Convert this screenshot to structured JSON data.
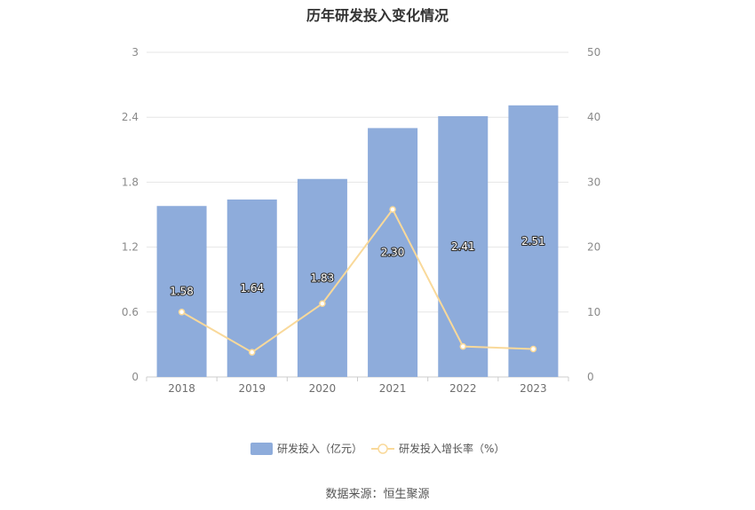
{
  "chart_data": {
    "type": "bar",
    "title": "历年研发投入变化情况",
    "categories": [
      "2018",
      "2019",
      "2020",
      "2021",
      "2022",
      "2023"
    ],
    "series": [
      {
        "name": "研发投入（亿元）",
        "type": "bar",
        "axis": "left",
        "values": [
          1.58,
          1.64,
          1.83,
          2.3,
          2.41,
          2.51
        ],
        "color": "#8eacdb"
      },
      {
        "name": "研发投入增长率（%）",
        "type": "line",
        "axis": "right",
        "values": [
          10.0,
          3.8,
          11.3,
          25.8,
          4.7,
          4.3
        ],
        "color": "#f9d99a"
      }
    ],
    "data_labels": [
      "1.58",
      "1.64",
      "1.83",
      "2.30",
      "2.41",
      "2.51"
    ],
    "y_left": {
      "min": 0,
      "max": 3,
      "ticks": [
        "0",
        "0.6",
        "1.2",
        "1.8",
        "2.4",
        "3"
      ]
    },
    "y_right": {
      "min": 0,
      "max": 50,
      "ticks": [
        "0",
        "10",
        "20",
        "30",
        "40",
        "50"
      ]
    },
    "grid": true,
    "legend_position": "bottom"
  },
  "source_text": "数据来源：恒生聚源"
}
